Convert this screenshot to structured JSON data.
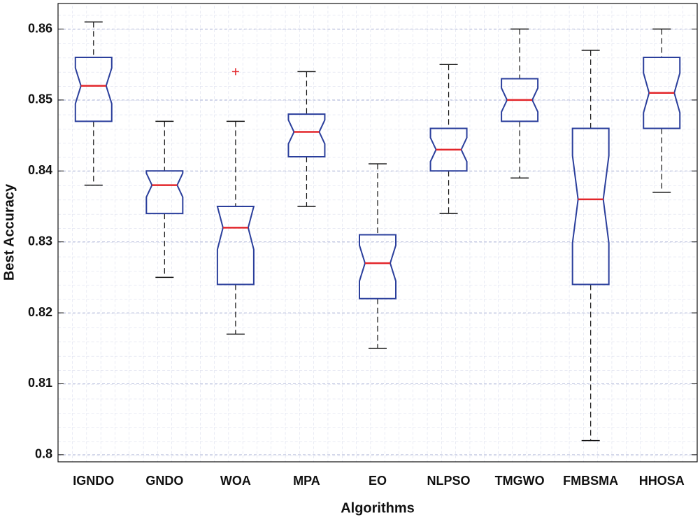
{
  "chart_data": {
    "type": "box",
    "xlabel": "Algorithms",
    "ylabel": "Best Accuracy",
    "categories": [
      "IGNDO",
      "GNDO",
      "WOA",
      "MPA",
      "EO",
      "NLPSO",
      "TMGWO",
      "FMBSMA",
      "HHOSA"
    ],
    "boxes": [
      {
        "whisker_low": 0.838,
        "q1": 0.847,
        "median": 0.852,
        "q3": 0.856,
        "whisker_high": 0.861,
        "outliers": []
      },
      {
        "whisker_low": 0.825,
        "q1": 0.834,
        "median": 0.838,
        "q3": 0.84,
        "whisker_high": 0.847,
        "outliers": []
      },
      {
        "whisker_low": 0.817,
        "q1": 0.824,
        "median": 0.832,
        "q3": 0.835,
        "whisker_high": 0.847,
        "outliers": [
          0.854
        ]
      },
      {
        "whisker_low": 0.835,
        "q1": 0.842,
        "median": 0.8455,
        "q3": 0.848,
        "whisker_high": 0.854,
        "outliers": []
      },
      {
        "whisker_low": 0.815,
        "q1": 0.822,
        "median": 0.827,
        "q3": 0.831,
        "whisker_high": 0.841,
        "outliers": []
      },
      {
        "whisker_low": 0.834,
        "q1": 0.84,
        "median": 0.843,
        "q3": 0.846,
        "whisker_high": 0.855,
        "outliers": []
      },
      {
        "whisker_low": 0.839,
        "q1": 0.847,
        "median": 0.85,
        "q3": 0.853,
        "whisker_high": 0.86,
        "outliers": []
      },
      {
        "whisker_low": 0.802,
        "q1": 0.824,
        "median": 0.836,
        "q3": 0.846,
        "whisker_high": 0.857,
        "outliers": []
      },
      {
        "whisker_low": 0.837,
        "q1": 0.846,
        "median": 0.851,
        "q3": 0.856,
        "whisker_high": 0.86,
        "outliers": []
      }
    ],
    "box_color": "#2b3f9c",
    "median_color": "#e3262b",
    "whisker_color": "#111111",
    "outlier_color": "#e3262b",
    "ylim": [
      0.799,
      0.8636
    ],
    "yticks": [
      0.8,
      0.81,
      0.82,
      0.83,
      0.84,
      0.85,
      0.86
    ],
    "grid": true
  }
}
